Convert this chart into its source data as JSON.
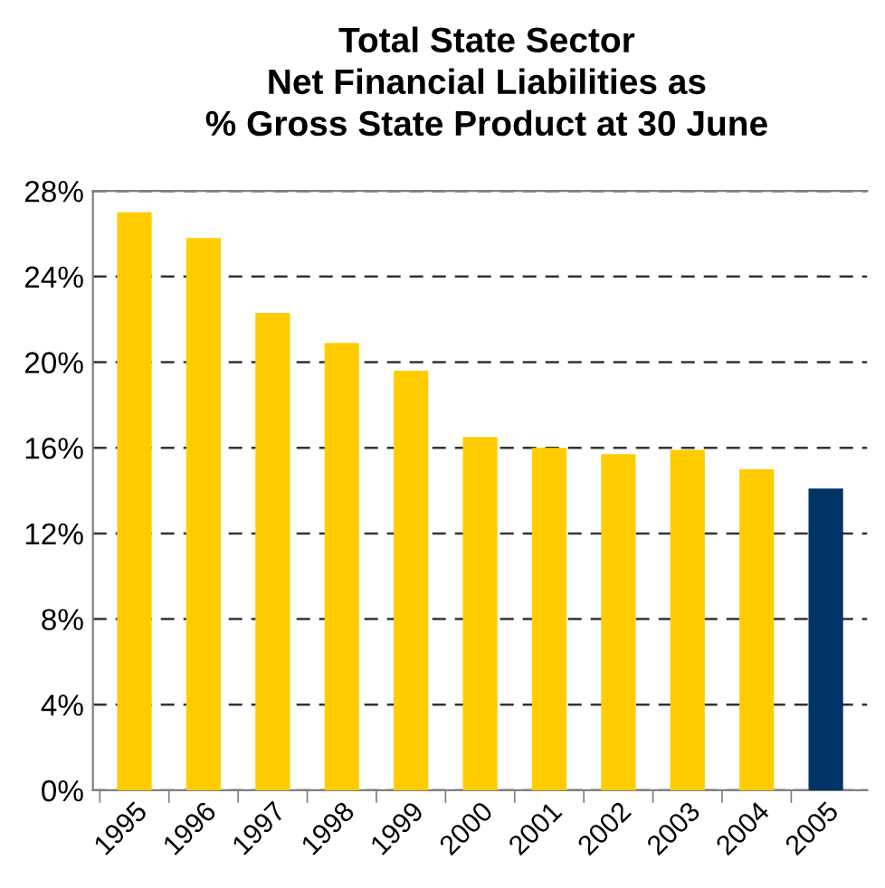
{
  "chart_data": {
    "type": "bar",
    "title": "Total State Sector\nNet Financial Liabilities as\n% Gross State Product at 30 June",
    "categories": [
      "1995",
      "1996",
      "1997",
      "1998",
      "1999",
      "2000",
      "2001",
      "2002",
      "2003",
      "2004",
      "2005"
    ],
    "values": [
      27.0,
      25.8,
      22.3,
      20.9,
      19.6,
      16.5,
      16.0,
      15.7,
      15.9,
      15.0,
      14.1
    ],
    "colors": [
      "#ffcc00",
      "#ffcc00",
      "#ffcc00",
      "#ffcc00",
      "#ffcc00",
      "#ffcc00",
      "#ffcc00",
      "#ffcc00",
      "#ffcc00",
      "#ffcc00",
      "#003366"
    ],
    "ylim": [
      0,
      28
    ],
    "yticks": [
      {
        "value": 0,
        "label": "0%"
      },
      {
        "value": 4,
        "label": "4%"
      },
      {
        "value": 8,
        "label": "8%"
      },
      {
        "value": 12,
        "label": "12%"
      },
      {
        "value": 16,
        "label": "16%"
      },
      {
        "value": 20,
        "label": "20%"
      },
      {
        "value": 24,
        "label": "24%"
      },
      {
        "value": 28,
        "label": "28%"
      }
    ],
    "grid": "y",
    "legend": false
  }
}
